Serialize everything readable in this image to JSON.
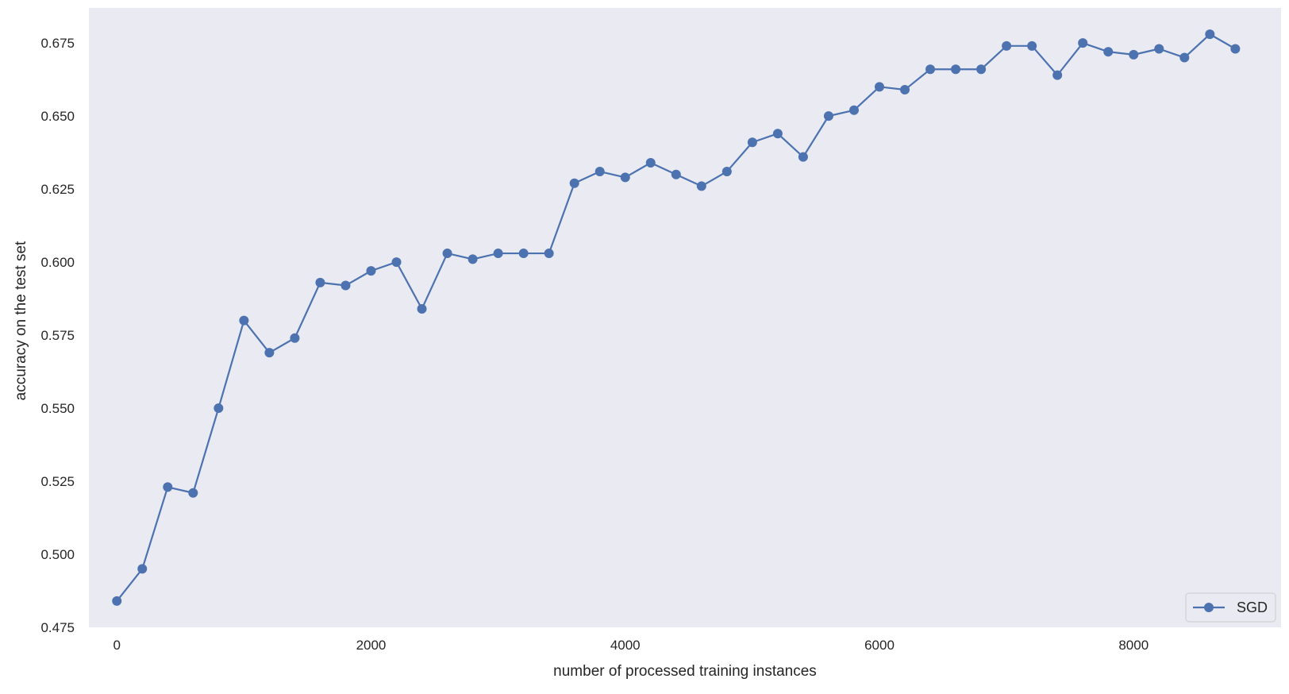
{
  "chart_data": {
    "type": "line",
    "title": "",
    "xlabel": "number of processed training instances",
    "ylabel": "accuracy on the test set",
    "xlim": [
      -220,
      9160
    ],
    "ylim": [
      0.475,
      0.687
    ],
    "xticks": [
      0,
      2000,
      4000,
      6000,
      8000
    ],
    "xtick_labels": [
      "0",
      "2000",
      "4000",
      "6000",
      "8000"
    ],
    "yticks": [
      0.475,
      0.5,
      0.525,
      0.55,
      0.575,
      0.6,
      0.625,
      0.65,
      0.675
    ],
    "ytick_labels": [
      "0.475",
      "0.500",
      "0.525",
      "0.550",
      "0.575",
      "0.600",
      "0.625",
      "0.650",
      "0.675"
    ],
    "grid": false,
    "legend": {
      "placement": "lower-right",
      "entries": [
        "SGD"
      ]
    },
    "colors": {
      "series": "#4c72b0",
      "plot_background": "#eaeaf2",
      "page_background": "#ffffff",
      "text": "#262626"
    },
    "series": [
      {
        "name": "SGD",
        "marker": "circle",
        "x": [
          0,
          200,
          400,
          600,
          800,
          1000,
          1200,
          1400,
          1600,
          1800,
          2000,
          2200,
          2400,
          2600,
          2800,
          3000,
          3200,
          3400,
          3600,
          3800,
          4000,
          4200,
          4400,
          4600,
          4800,
          5000,
          5200,
          5400,
          5600,
          5800,
          6000,
          6200,
          6400,
          6600,
          6800,
          7000,
          7200,
          7400,
          7600,
          7800,
          8000,
          8200,
          8400,
          8600,
          8800
        ],
        "y": [
          0.484,
          0.495,
          0.523,
          0.521,
          0.55,
          0.58,
          0.569,
          0.574,
          0.593,
          0.592,
          0.597,
          0.6,
          0.584,
          0.603,
          0.601,
          0.603,
          0.603,
          0.603,
          0.627,
          0.631,
          0.629,
          0.634,
          0.63,
          0.626,
          0.631,
          0.641,
          0.644,
          0.636,
          0.65,
          0.652,
          0.66,
          0.659,
          0.666,
          0.666,
          0.666,
          0.674,
          0.674,
          0.664,
          0.675,
          0.672,
          0.671,
          0.673,
          0.67,
          0.678,
          0.673
        ]
      }
    ]
  }
}
